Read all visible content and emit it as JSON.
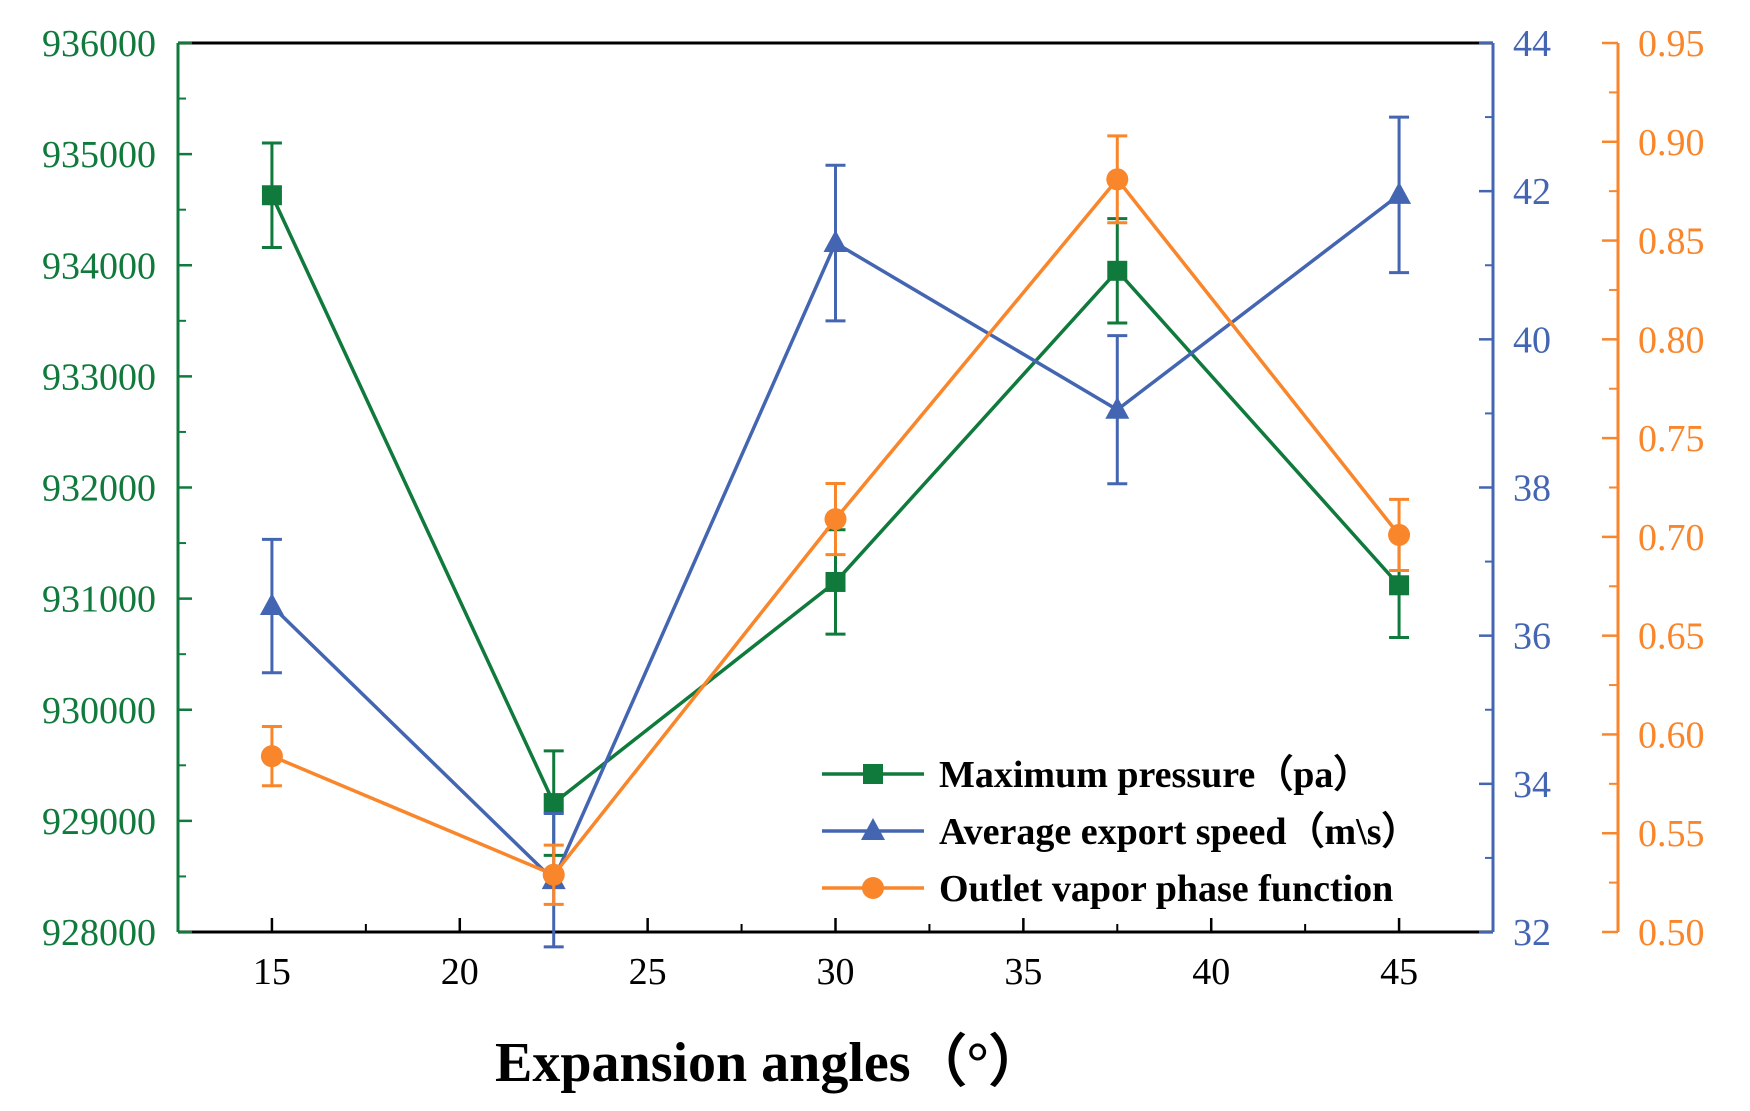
{
  "chart_data": {
    "type": "line",
    "title": "",
    "xlabel": "Expansion angles（°）",
    "x": [
      15,
      22.5,
      30,
      37.5,
      45
    ],
    "xlim": [
      12.5,
      47.5
    ],
    "x_ticks": [
      "15",
      "20",
      "25",
      "30",
      "35",
      "40",
      "45"
    ],
    "x_tick_values": [
      15,
      20,
      25,
      30,
      35,
      40,
      45
    ],
    "legend_position": "bottom-right",
    "series": [
      {
        "name": "Maximum pressure（pa）",
        "axis": "left",
        "color": "#107a3c",
        "marker": "square",
        "values": [
          934630,
          929160,
          931150,
          933950,
          931120
        ],
        "errors": [
          470,
          470,
          470,
          470,
          470
        ]
      },
      {
        "name": "Average export speed（m\\s）",
        "axis": "right1",
        "color": "#4466b2",
        "marker": "triangle",
        "values": [
          36.4,
          32.7,
          41.3,
          39.05,
          41.95
        ],
        "errors": [
          0.9,
          0.9,
          1.05,
          1.0,
          1.05
        ]
      },
      {
        "name": "Outlet vapor phase function",
        "axis": "right2",
        "color": "#f9862b",
        "marker": "circle",
        "values": [
          0.589,
          0.529,
          0.709,
          0.881,
          0.701
        ],
        "errors": [
          0.015,
          0.015,
          0.018,
          0.022,
          0.018
        ]
      }
    ],
    "axes": {
      "left": {
        "ylim": [
          928000,
          936000
        ],
        "ticks": [
          "928000",
          "929000",
          "930000",
          "931000",
          "932000",
          "933000",
          "934000",
          "935000",
          "936000"
        ],
        "tick_values": [
          928000,
          929000,
          930000,
          931000,
          932000,
          933000,
          934000,
          935000,
          936000
        ],
        "color": "#107a3c"
      },
      "right1": {
        "ylim": [
          32,
          44
        ],
        "ticks": [
          "32",
          "34",
          "36",
          "38",
          "40",
          "42",
          "44"
        ],
        "tick_values": [
          32,
          34,
          36,
          38,
          40,
          42,
          44
        ],
        "color": "#4466b2"
      },
      "right2": {
        "ylim": [
          0.5,
          0.95
        ],
        "ticks": [
          "0.50",
          "0.55",
          "0.60",
          "0.65",
          "0.70",
          "0.75",
          "0.80",
          "0.85",
          "0.90",
          "0.95"
        ],
        "tick_values": [
          0.5,
          0.55,
          0.6,
          0.65,
          0.7,
          0.75,
          0.8,
          0.85,
          0.9,
          0.95
        ],
        "color": "#f9862b"
      }
    }
  }
}
